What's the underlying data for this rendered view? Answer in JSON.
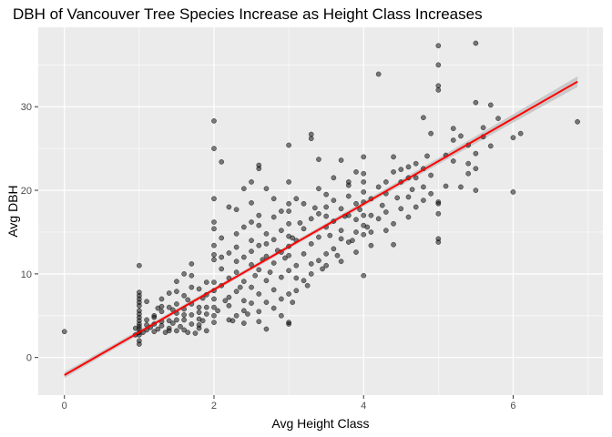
{
  "chart_data": {
    "type": "scatter",
    "title": "DBH of Vancouver Tree Species Increase as Height Class Increases",
    "xlabel": "Avg Height Class",
    "ylabel": "Avg DBH",
    "xlim": [
      -0.35,
      7.2
    ],
    "ylim": [
      -4.5,
      39.5
    ],
    "xticks": [
      0,
      2,
      4,
      6
    ],
    "yticks": [
      0,
      10,
      20,
      30
    ],
    "grid": true,
    "colors": {
      "panel": "#ebebeb",
      "grid": "#ffffff",
      "points": "#000000",
      "fit_line": "#ff0000",
      "ribbon": "#bebebe"
    },
    "fit": {
      "x0": 0,
      "y0": -2.1,
      "x1": 6.86,
      "y1": 33.0,
      "se_band": true
    },
    "points": [
      [
        0,
        3.1
      ],
      [
        1.0,
        11.0
      ],
      [
        2.0,
        28.3
      ],
      [
        2.0,
        25.0
      ],
      [
        4.2,
        33.9
      ],
      [
        5.0,
        37.3
      ],
      [
        5.0,
        35.0
      ],
      [
        5.5,
        37.6
      ],
      [
        5.0,
        32.5
      ],
      [
        5.0,
        32.0
      ],
      [
        6.86,
        28.2
      ],
      [
        6.0,
        19.8
      ],
      [
        6.0,
        26.3
      ],
      [
        6.1,
        26.8
      ],
      [
        5.5,
        30.5
      ],
      [
        5.7,
        30.2
      ],
      [
        5.5,
        20.0
      ],
      [
        5.2,
        27.4
      ],
      [
        5.3,
        26.5
      ],
      [
        5.4,
        25.4
      ],
      [
        5.6,
        26.4
      ],
      [
        5.7,
        25.3
      ],
      [
        4.8,
        28.7
      ],
      [
        4.9,
        26.8
      ],
      [
        5.0,
        18.6
      ],
      [
        5.0,
        18.4
      ],
      [
        4.7,
        23.2
      ],
      [
        4.8,
        18.8
      ],
      [
        4.5,
        22.5
      ],
      [
        4.4,
        24.0
      ],
      [
        4.6,
        21.5
      ],
      [
        4.3,
        21.0
      ],
      [
        4.0,
        24.0
      ],
      [
        4.0,
        9.8
      ],
      [
        4.1,
        15.0
      ],
      [
        3.8,
        21.0
      ],
      [
        3.9,
        22.2
      ],
      [
        3.7,
        23.6
      ],
      [
        3.5,
        19.5
      ],
      [
        3.4,
        23.7
      ],
      [
        3.3,
        26.2
      ],
      [
        3.3,
        26.7
      ],
      [
        3.1,
        19.0
      ],
      [
        3.0,
        25.4
      ],
      [
        3.0,
        21.0
      ],
      [
        3.0,
        16.0
      ],
      [
        3.0,
        14.5
      ],
      [
        3.0,
        4.2
      ],
      [
        3.0,
        4.0
      ],
      [
        2.8,
        19.0
      ],
      [
        2.7,
        20.2
      ],
      [
        2.6,
        23.0
      ],
      [
        2.6,
        22.6
      ],
      [
        2.5,
        21.0
      ],
      [
        2.4,
        20.2
      ],
      [
        2.5,
        18.5
      ],
      [
        2.6,
        17.0
      ],
      [
        2.3,
        17.7
      ],
      [
        2.2,
        18.0
      ],
      [
        2.0,
        19.0
      ],
      [
        2.1,
        23.4
      ],
      [
        2.0,
        16.2
      ],
      [
        2.0,
        15.4
      ],
      [
        2.0,
        13.4
      ],
      [
        2.0,
        12.3
      ],
      [
        2.0,
        11.7
      ],
      [
        2.0,
        9.0
      ],
      [
        2.0,
        8.0
      ],
      [
        2.0,
        7.0
      ],
      [
        2.0,
        6.0
      ],
      [
        2.0,
        5.0
      ],
      [
        2.0,
        4.2
      ],
      [
        1.0,
        7.8
      ],
      [
        1.0,
        7.4
      ],
      [
        1.0,
        7.0
      ],
      [
        1.0,
        6.6
      ],
      [
        1.0,
        6.2
      ],
      [
        1.0,
        5.6
      ],
      [
        1.0,
        5.2
      ],
      [
        1.0,
        4.8
      ],
      [
        1.0,
        4.4
      ],
      [
        1.0,
        4.0
      ],
      [
        1.0,
        3.7
      ],
      [
        1.0,
        3.4
      ],
      [
        1.0,
        3.0
      ],
      [
        1.0,
        2.7
      ],
      [
        1.0,
        2.0
      ],
      [
        1.0,
        1.6
      ],
      [
        0.95,
        2.7
      ],
      [
        0.95,
        3.5
      ],
      [
        1.05,
        3.0
      ],
      [
        1.1,
        3.3
      ],
      [
        1.15,
        3.6
      ],
      [
        1.2,
        3.1
      ],
      [
        1.25,
        3.4
      ],
      [
        1.3,
        3.8
      ],
      [
        1.35,
        3.0
      ],
      [
        1.4,
        3.5
      ],
      [
        1.45,
        4.1
      ],
      [
        1.5,
        3.2
      ],
      [
        1.55,
        3.7
      ],
      [
        1.6,
        4.5
      ],
      [
        1.65,
        3.0
      ],
      [
        1.7,
        4.0
      ],
      [
        1.75,
        2.9
      ],
      [
        1.8,
        3.5
      ],
      [
        1.85,
        4.4
      ],
      [
        1.9,
        3.2
      ],
      [
        1.3,
        7.0
      ],
      [
        1.4,
        7.7
      ],
      [
        1.5,
        6.4
      ],
      [
        1.6,
        7.4
      ],
      [
        1.7,
        8.4
      ],
      [
        1.8,
        6.0
      ],
      [
        1.9,
        7.5
      ],
      [
        1.5,
        9.1
      ],
      [
        1.6,
        10.0
      ],
      [
        1.7,
        11.2
      ],
      [
        1.8,
        8.2
      ],
      [
        1.2,
        5.0
      ],
      [
        1.3,
        5.5
      ],
      [
        1.4,
        6.0
      ],
      [
        1.5,
        5.3
      ],
      [
        1.6,
        5.8
      ],
      [
        1.7,
        6.4
      ],
      [
        1.8,
        5.4
      ],
      [
        1.9,
        6.0
      ],
      [
        1.1,
        4.5
      ],
      [
        1.2,
        4.8
      ],
      [
        1.4,
        4.4
      ],
      [
        1.6,
        5.1
      ],
      [
        1.8,
        4.6
      ],
      [
        2.2,
        4.5
      ],
      [
        2.3,
        5.0
      ],
      [
        2.4,
        4.1
      ],
      [
        2.5,
        6.5
      ],
      [
        2.6,
        5.5
      ],
      [
        2.7,
        6.6
      ],
      [
        2.8,
        5.9
      ],
      [
        2.2,
        7.2
      ],
      [
        2.3,
        7.9
      ],
      [
        2.4,
        6.8
      ],
      [
        2.5,
        8.4
      ],
      [
        2.6,
        7.6
      ],
      [
        2.7,
        9.2
      ],
      [
        2.8,
        8.1
      ],
      [
        2.9,
        9.6
      ],
      [
        2.2,
        9.5
      ],
      [
        2.3,
        10.2
      ],
      [
        2.4,
        9.1
      ],
      [
        2.5,
        11.1
      ],
      [
        2.6,
        10.5
      ],
      [
        2.7,
        12.1
      ],
      [
        2.8,
        11.3
      ],
      [
        2.9,
        12.6
      ],
      [
        2.2,
        12.5
      ],
      [
        2.3,
        13.2
      ],
      [
        2.4,
        12.0
      ],
      [
        2.5,
        14.0
      ],
      [
        2.6,
        13.4
      ],
      [
        2.7,
        14.8
      ],
      [
        2.8,
        14.1
      ],
      [
        2.9,
        15.2
      ],
      [
        2.4,
        15.6
      ],
      [
        2.5,
        16.2
      ],
      [
        2.6,
        15.8
      ],
      [
        2.3,
        14.8
      ],
      [
        2.1,
        14.3
      ],
      [
        3.1,
        8.0
      ],
      [
        3.2,
        9.2
      ],
      [
        3.3,
        10.0
      ],
      [
        3.4,
        11.6
      ],
      [
        3.5,
        12.4
      ],
      [
        3.6,
        13.0
      ],
      [
        3.7,
        11.5
      ],
      [
        3.8,
        13.8
      ],
      [
        3.9,
        12.6
      ],
      [
        3.1,
        11.0
      ],
      [
        3.2,
        12.4
      ],
      [
        3.3,
        13.6
      ],
      [
        3.4,
        14.4
      ],
      [
        3.5,
        15.6
      ],
      [
        3.6,
        16.3
      ],
      [
        3.7,
        15.2
      ],
      [
        3.8,
        17.0
      ],
      [
        3.9,
        16.5
      ],
      [
        3.1,
        14.0
      ],
      [
        3.2,
        15.4
      ],
      [
        3.3,
        16.6
      ],
      [
        3.4,
        17.2
      ],
      [
        3.5,
        18.0
      ],
      [
        3.6,
        18.8
      ],
      [
        3.7,
        17.8
      ],
      [
        3.8,
        19.3
      ],
      [
        3.9,
        18.4
      ],
      [
        3.2,
        18.4
      ],
      [
        3.4,
        20.2
      ],
      [
        3.6,
        21.5
      ],
      [
        3.8,
        20.6
      ],
      [
        3.1,
        9.5
      ],
      [
        3.3,
        11.2
      ],
      [
        3.5,
        11.0
      ],
      [
        3.7,
        14.2
      ],
      [
        3.9,
        15.0
      ],
      [
        4.1,
        13.4
      ],
      [
        4.2,
        16.6
      ],
      [
        4.3,
        17.4
      ],
      [
        4.4,
        16.0
      ],
      [
        4.5,
        17.8
      ],
      [
        4.6,
        19.2
      ],
      [
        4.7,
        18.0
      ],
      [
        4.8,
        20.4
      ],
      [
        4.9,
        19.6
      ],
      [
        5.0,
        17.2
      ],
      [
        5.0,
        14.2
      ],
      [
        5.0,
        13.8
      ],
      [
        4.1,
        19.0
      ],
      [
        4.2,
        20.4
      ],
      [
        4.3,
        19.6
      ],
      [
        4.4,
        22.2
      ],
      [
        4.5,
        21.0
      ],
      [
        4.6,
        22.8
      ],
      [
        4.1,
        17.0
      ],
      [
        4.3,
        15.2
      ],
      [
        4.4,
        13.5
      ],
      [
        4.6,
        16.8
      ],
      [
        4.7,
        21.5
      ],
      [
        4.8,
        22.6
      ],
      [
        4.9,
        21.8
      ],
      [
        5.1,
        20.5
      ],
      [
        5.2,
        23.5
      ],
      [
        5.4,
        22.0
      ],
      [
        5.5,
        24.4
      ],
      [
        5.3,
        20.4
      ],
      [
        5.1,
        24.2
      ],
      [
        5.6,
        27.5
      ],
      [
        5.8,
        28.6
      ],
      [
        5.2,
        26.0
      ],
      [
        5.4,
        23.2
      ],
      [
        5.5,
        22.6
      ],
      [
        2.1,
        10.6
      ],
      [
        2.1,
        8.6
      ],
      [
        2.2,
        6.2
      ],
      [
        2.4,
        5.6
      ],
      [
        2.6,
        4.3
      ],
      [
        2.9,
        5.0
      ],
      [
        2.9,
        7.0
      ],
      [
        2.7,
        3.4
      ],
      [
        3.0,
        10.4
      ],
      [
        3.0,
        12.2
      ],
      [
        3.0,
        13.3
      ],
      [
        3.0,
        7.6
      ],
      [
        2.9,
        17.5
      ],
      [
        2.8,
        16.8
      ],
      [
        2.7,
        13.6
      ],
      [
        2.5,
        12.7
      ],
      [
        2.3,
        11.5
      ],
      [
        2.1,
        12.0
      ],
      [
        1.9,
        9.0
      ],
      [
        1.7,
        9.8
      ],
      [
        1.5,
        7.9
      ],
      [
        1.3,
        6.1
      ],
      [
        1.1,
        6.7
      ],
      [
        1.2,
        4.0
      ],
      [
        1.4,
        3.2
      ],
      [
        1.6,
        3.3
      ],
      [
        1.8,
        3.9
      ],
      [
        1.9,
        5.2
      ],
      [
        1.7,
        5.1
      ],
      [
        1.5,
        4.5
      ],
      [
        1.3,
        4.3
      ],
      [
        1.1,
        3.9
      ],
      [
        1.25,
        5.9
      ],
      [
        1.45,
        5.7
      ],
      [
        1.65,
        6.9
      ],
      [
        1.85,
        7.1
      ],
      [
        2.05,
        5.6
      ],
      [
        2.15,
        6.8
      ],
      [
        2.35,
        8.4
      ],
      [
        2.55,
        9.8
      ],
      [
        2.65,
        11.7
      ],
      [
        2.85,
        12.8
      ],
      [
        3.05,
        14.3
      ],
      [
        3.15,
        16.1
      ],
      [
        3.35,
        17.9
      ],
      [
        3.55,
        14.6
      ],
      [
        3.75,
        16.9
      ],
      [
        3.95,
        17.7
      ],
      [
        4.05,
        15.6
      ],
      [
        4.25,
        18.2
      ],
      [
        4.45,
        19.1
      ],
      [
        4.65,
        20.1
      ],
      [
        4.85,
        24.1
      ],
      [
        3.45,
        10.6
      ],
      [
        3.65,
        12.2
      ],
      [
        3.85,
        14.0
      ],
      [
        3.25,
        8.6
      ],
      [
        3.05,
        6.6
      ],
      [
        2.45,
        5.2
      ],
      [
        2.25,
        4.4
      ],
      [
        2.75,
        10.2
      ],
      [
        2.95,
        11.9
      ],
      [
        3.5,
        16.9
      ],
      [
        4.0,
        17.0
      ],
      [
        4.0,
        15.8
      ],
      [
        4.0,
        14.7
      ],
      [
        4.0,
        18.6
      ],
      [
        4.0,
        21.0
      ],
      [
        4.0,
        22.0
      ],
      [
        4.0,
        19.8
      ],
      [
        3.0,
        17.5
      ],
      [
        3.0,
        18.4
      ]
    ]
  }
}
